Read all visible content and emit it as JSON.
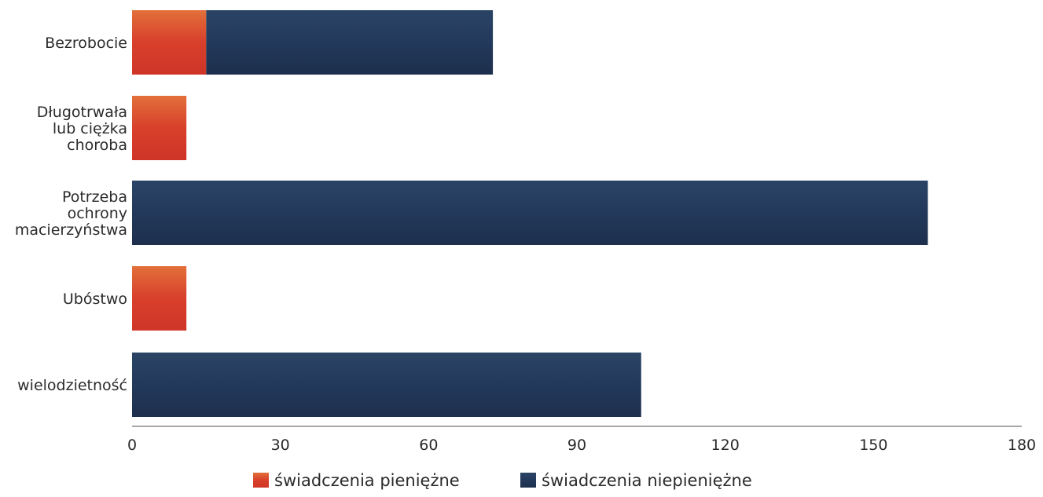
{
  "chart_data": {
    "type": "bar",
    "orientation": "horizontal",
    "stacked": true,
    "categories": [
      "Bezrobocie",
      "Długotrwała lub ciężka choroba",
      "Potrzeba ochrony macierzyństwa",
      "Ubóstwo",
      "wielodzietność"
    ],
    "category_lines": [
      [
        "Bezrobocie"
      ],
      [
        "Długotrwała",
        "lub ciężka",
        "choroba"
      ],
      [
        "Potrzeba",
        "ochrony",
        "macierzyństwa"
      ],
      [
        "Ubóstwo"
      ],
      [
        "wielodzietność"
      ]
    ],
    "series": [
      {
        "name": "świadczenia pieniężne",
        "values": [
          15,
          11,
          0,
          11,
          0
        ],
        "color": "#d9442c"
      },
      {
        "name": "świadczenia niepieniężne",
        "values": [
          58,
          0,
          161,
          0,
          103
        ],
        "color": "#23395b"
      }
    ],
    "xlim": [
      0,
      180
    ],
    "xticks": [
      "0",
      "30",
      "60",
      "90",
      "120",
      "150",
      "180"
    ],
    "grid": false,
    "legend_position": "bottom"
  }
}
